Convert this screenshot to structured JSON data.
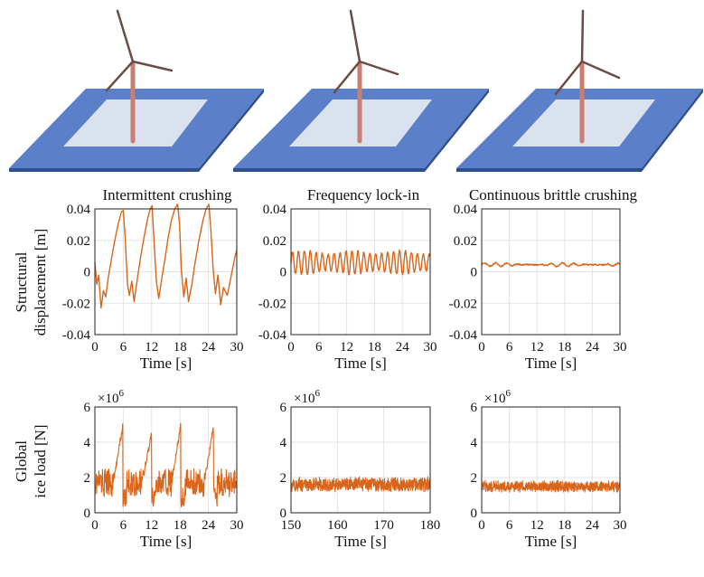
{
  "figure": {
    "colors": {
      "line": "#d9651b",
      "sea_top": "#5b7fc8",
      "sea_side": "#2f4f8f",
      "ice": "#e1e7f1",
      "tower": "#c97f6f",
      "blade": "#6b4b45"
    }
  },
  "chart_data": [
    {
      "type": "line",
      "title": "Intermittent crushing",
      "ylabel": [
        "Structural",
        "displacement [m]"
      ],
      "xlabel": "Time [s]",
      "xlim": [
        0,
        30
      ],
      "ylim": [
        -0.04,
        0.04
      ],
      "xticks": [
        "0",
        "6",
        "12",
        "18",
        "24",
        "30"
      ],
      "yticks": [
        "-0.04",
        "-0.02",
        "0",
        "0.02",
        "0.04"
      ],
      "grid": true,
      "series": [
        {
          "x": [
            0,
            0.4,
            0.8,
            1.3,
            1.8,
            2.3,
            2.8,
            3.5,
            4.2,
            4.9,
            5.6,
            6.0,
            6.4,
            6.9,
            7.3,
            7.8,
            8.3,
            9.0,
            9.7,
            10.4,
            11.1,
            11.7,
            12.1,
            12.5,
            13.0,
            13.5,
            14.1,
            14.8,
            15.5,
            16.2,
            16.9,
            17.5,
            17.9,
            18.3,
            18.8,
            19.3,
            19.8,
            20.5,
            21.2,
            22.0,
            22.8,
            23.5,
            24.1,
            24.5,
            25.0,
            25.5,
            26.0,
            26.6,
            27.2,
            28.0,
            28.8,
            29.5,
            30.0
          ],
          "y": [
            0.006,
            -0.008,
            -0.002,
            -0.023,
            -0.012,
            -0.016,
            -0.004,
            0.008,
            0.02,
            0.03,
            0.038,
            0.039,
            0.022,
            -0.008,
            -0.015,
            -0.006,
            -0.019,
            -0.004,
            0.01,
            0.022,
            0.033,
            0.04,
            0.042,
            0.02,
            -0.006,
            -0.017,
            -0.005,
            0.008,
            0.022,
            0.033,
            0.04,
            0.043,
            0.03,
            0.0,
            -0.016,
            -0.004,
            -0.019,
            -0.008,
            0.006,
            0.02,
            0.032,
            0.04,
            0.043,
            0.028,
            0.002,
            -0.014,
            -0.002,
            -0.021,
            -0.01,
            -0.015,
            -0.003,
            0.008,
            0.014
          ]
        }
      ]
    },
    {
      "type": "line",
      "title": "Frequency lock-in",
      "xlabel": "Time [s]",
      "xlim": [
        0,
        30
      ],
      "ylim": [
        -0.04,
        0.04
      ],
      "xticks": [
        "0",
        "6",
        "12",
        "18",
        "24",
        "30"
      ],
      "yticks": [
        "-0.04",
        "-0.02",
        "0",
        "0.02",
        "0.04"
      ],
      "grid": true,
      "series": [
        {
          "mean": 0.006,
          "amplitude": 0.0075,
          "frequency_hz": 0.78
        }
      ]
    },
    {
      "type": "line",
      "title": "Continuous brittle crushing",
      "xlabel": "Time [s]",
      "xlim": [
        0,
        30
      ],
      "ylim": [
        -0.04,
        0.04
      ],
      "xticks": [
        "0",
        "6",
        "12",
        "18",
        "24",
        "30"
      ],
      "yticks": [
        "-0.04",
        "-0.02",
        "0",
        "0.02",
        "0.04"
      ],
      "grid": true,
      "series": [
        {
          "mean": 0.0045,
          "amplitude": 0.0012
        }
      ]
    },
    {
      "type": "line",
      "ylabel": [
        "Global",
        "ice load [N]"
      ],
      "xlabel": "Time [s]",
      "multiplier": "×10",
      "multiplier_exp": "6",
      "xlim": [
        0,
        30
      ],
      "ylim": [
        0,
        6
      ],
      "xticks": [
        "0",
        "6",
        "12",
        "18",
        "24",
        "30"
      ],
      "yticks": [
        "0",
        "2",
        "4",
        "6"
      ],
      "grid": true,
      "series": [
        {
          "baseline": 1.7,
          "noise": 0.8,
          "peaks": [
            [
              5.9,
              4.9
            ],
            [
              12.0,
              4.5
            ],
            [
              18.2,
              5.0
            ],
            [
              25.1,
              4.9
            ]
          ]
        }
      ]
    },
    {
      "type": "line",
      "xlabel": "Time [s]",
      "multiplier": "×10",
      "multiplier_exp": "6",
      "xlim": [
        150,
        180
      ],
      "ylim": [
        0,
        6
      ],
      "xticks": [
        "150",
        "160",
        "170",
        "180"
      ],
      "yticks": [
        "0",
        "2",
        "4",
        "6"
      ],
      "grid": true,
      "series": [
        {
          "mean": 1.6,
          "noise": 0.45
        }
      ]
    },
    {
      "type": "line",
      "xlabel": "Time [s]",
      "multiplier": "×10",
      "multiplier_exp": "6",
      "xlim": [
        0,
        30
      ],
      "ylim": [
        0,
        6
      ],
      "xticks": [
        "0",
        "6",
        "12",
        "18",
        "24",
        "30"
      ],
      "yticks": [
        "0",
        "2",
        "4",
        "6"
      ],
      "grid": true,
      "series": [
        {
          "mean": 1.5,
          "noise": 0.35
        }
      ]
    }
  ]
}
